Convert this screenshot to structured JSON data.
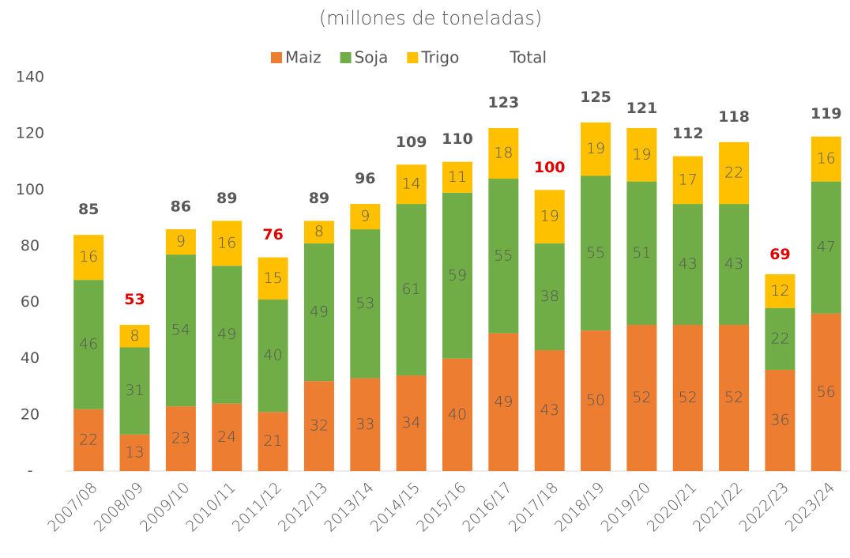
{
  "chart_data": {
    "type": "stacked_bar",
    "title": "(millones de toneladas)",
    "categories": [
      "2007/08",
      "2008/09",
      "2009/10",
      "2010/11",
      "2011/12",
      "2012/13",
      "2013/14",
      "2014/15",
      "2015/16",
      "2016/17",
      "2017/18",
      "2018/19",
      "2019/20",
      "2020/21",
      "2021/22",
      "2022/23",
      "2023/24"
    ],
    "series": [
      {
        "name": "Maiz",
        "color": "#ed7d31",
        "values": [
          22,
          13,
          23,
          24,
          21,
          32,
          33,
          34,
          40,
          49,
          43,
          50,
          52,
          52,
          52,
          36,
          56
        ]
      },
      {
        "name": "Soja",
        "color": "#70ad47",
        "values": [
          46,
          31,
          54,
          49,
          40,
          49,
          53,
          61,
          59,
          55,
          38,
          55,
          51,
          43,
          43,
          22,
          47
        ]
      },
      {
        "name": "Trigo",
        "color": "#ffc000",
        "values": [
          16,
          8,
          9,
          16,
          15,
          8,
          9,
          14,
          11,
          18,
          19,
          19,
          19,
          17,
          22,
          12,
          16
        ]
      }
    ],
    "total": {
      "name": "Total",
      "values": [
        85,
        53,
        86,
        89,
        76,
        89,
        96,
        109,
        110,
        123,
        100,
        125,
        121,
        112,
        118,
        69,
        119
      ],
      "colors": [
        "#595959",
        "#e00000",
        "#595959",
        "#595959",
        "#e00000",
        "#595959",
        "#595959",
        "#595959",
        "#595959",
        "#595959",
        "#e00000",
        "#595959",
        "#595959",
        "#595959",
        "#595959",
        "#e00000",
        "#595959"
      ]
    },
    "ylim": [
      0,
      140
    ],
    "yticks": [
      {
        "value": 0,
        "label": "-"
      },
      20,
      40,
      60,
      80,
      100,
      120,
      140
    ],
    "grid": false
  }
}
